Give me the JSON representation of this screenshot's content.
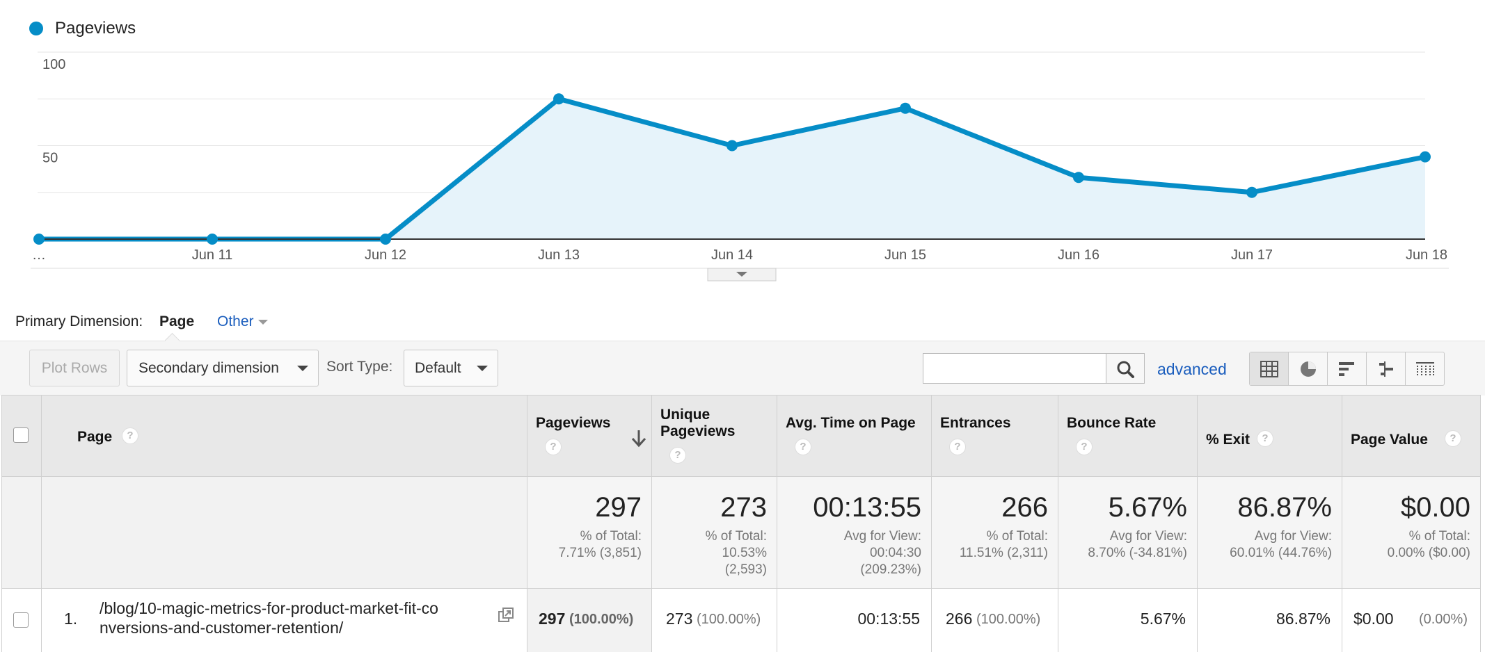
{
  "chart": {
    "legend_label": "Pageviews",
    "series_color": "#058dc7"
  },
  "chart_data": {
    "type": "area",
    "title": "",
    "x": [
      "…",
      "Jun 11",
      "Jun 12",
      "Jun 13",
      "Jun 14",
      "Jun 15",
      "Jun 16",
      "Jun 17",
      "Jun 18"
    ],
    "series": [
      {
        "name": "Pageviews",
        "values": [
          0,
          0,
          0,
          75,
          50,
          70,
          33,
          25,
          44
        ]
      }
    ],
    "y_ticks": [
      "100",
      "50"
    ],
    "ylim": [
      0,
      100
    ],
    "grid": true
  },
  "dimension": {
    "label": "Primary Dimension:",
    "active": "Page",
    "other": "Other"
  },
  "toolbar": {
    "plot_rows": "Plot Rows",
    "secondary_dimension": "Secondary dimension",
    "sort_type_label": "Sort Type:",
    "sort_type_value": "Default",
    "search_value": "",
    "advanced": "advanced",
    "views": [
      "table-view-icon",
      "pie-view-icon",
      "bar-view-icon",
      "comparison-view-icon",
      "pivot-view-icon"
    ]
  },
  "table": {
    "headers": {
      "page": "Page",
      "pageviews": "Pageviews",
      "unique_l1": "Unique",
      "unique_l2": "Pageviews",
      "avg_time": "Avg. Time on Page",
      "entrances": "Entrances",
      "bounce_rate": "Bounce Rate",
      "exit": "% Exit",
      "page_value": "Page Value"
    },
    "totals": {
      "pageviews": {
        "value": "297",
        "sub1": "% of Total:",
        "sub2": "7.71% (3,851)"
      },
      "unique": {
        "value": "273",
        "sub1": "% of Total:",
        "sub2": "10.53%",
        "sub3": "(2,593)"
      },
      "avg_time": {
        "value": "00:13:55",
        "sub1": "Avg for View:",
        "sub2": "00:04:30",
        "sub3": "(209.23%)"
      },
      "entrances": {
        "value": "266",
        "sub1": "% of Total:",
        "sub2": "11.51% (2,311)"
      },
      "bounce_rate": {
        "value": "5.67%",
        "sub1": "Avg for View:",
        "sub2": "8.70% (-34.81%)"
      },
      "exit": {
        "value": "86.87%",
        "sub1": "Avg for View:",
        "sub2": "60.01% (44.76%)"
      },
      "page_value": {
        "value": "$0.00",
        "sub1": "% of Total:",
        "sub2": "0.00% ($0.00)"
      }
    },
    "rows": [
      {
        "index": "1.",
        "page_l1": "/blog/10-magic-metrics-for-product-market-fit-co",
        "page_l2": "nversions-and-customer-retention/",
        "pageviews": "297",
        "pageviews_pct": "(100.00%)",
        "unique": "273",
        "unique_pct": "(100.00%)",
        "avg_time": "00:13:55",
        "entrances": "266",
        "entrances_pct": "(100.00%)",
        "bounce_rate": "5.67%",
        "exit": "86.87%",
        "page_value": "$0.00",
        "page_value_pct": "(0.00%)"
      }
    ]
  }
}
